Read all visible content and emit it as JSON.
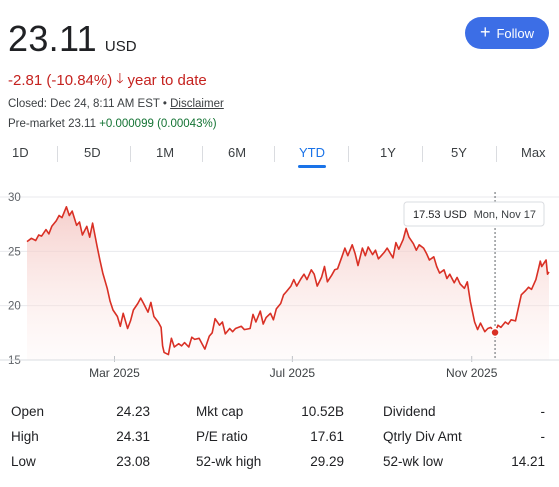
{
  "quote": {
    "price": "23.11",
    "currency": "USD",
    "change_text": "-2.81 (-10.84%)",
    "change_arrow": "🡓",
    "change_period": "year to date",
    "closed_text": "Closed: Dec 24, 8:11 AM EST • ",
    "disclaimer_link": "Disclaimer",
    "premarket_label": "Pre-market 23.11 ",
    "premarket_change": "+0.000099 (0.00043%)",
    "follow_label": "Follow",
    "follow_icon": "plus-icon"
  },
  "tabs": [
    {
      "label": "1D",
      "active": false
    },
    {
      "label": "5D",
      "active": false
    },
    {
      "label": "1M",
      "active": false
    },
    {
      "label": "6M",
      "active": false
    },
    {
      "label": "YTD",
      "active": true
    },
    {
      "label": "1Y",
      "active": false
    },
    {
      "label": "5Y",
      "active": false
    },
    {
      "label": "Max",
      "active": false
    }
  ],
  "chart_data": {
    "type": "area",
    "series_color": "#d93025",
    "yticks": [
      "30",
      "25",
      "20",
      "15"
    ],
    "ytick_values": [
      30,
      25,
      20,
      15
    ],
    "ylim": [
      15,
      30
    ],
    "xticks": [
      "Mar 2025",
      "Jul 2025",
      "Nov 2025"
    ],
    "xtick_values": [
      "2025-03-01",
      "2025-07-01",
      "2025-11-01"
    ],
    "xlim": [
      "2024-12-31",
      "2025-12-24"
    ],
    "grid": true,
    "tooltip": {
      "price": "17.53 USD",
      "date": "Mon, Nov 17"
    },
    "marker_point": {
      "x": "2025-11-17",
      "y": 17.53
    },
    "series": [
      {
        "values": [
          [
            "2024-12-31",
            25.9
          ],
          [
            "2025-01-03",
            26.2
          ],
          [
            "2025-01-06",
            26.0
          ],
          [
            "2025-01-08",
            26.5
          ],
          [
            "2025-01-10",
            26.4
          ],
          [
            "2025-01-13",
            27.0
          ],
          [
            "2025-01-15",
            26.6
          ],
          [
            "2025-01-17",
            27.3
          ],
          [
            "2025-01-20",
            27.8
          ],
          [
            "2025-01-22",
            28.3
          ],
          [
            "2025-01-24",
            28.1
          ],
          [
            "2025-01-27",
            29.1
          ],
          [
            "2025-01-29",
            28.3
          ],
          [
            "2025-01-31",
            28.7
          ],
          [
            "2025-02-03",
            27.4
          ],
          [
            "2025-02-05",
            27.7
          ],
          [
            "2025-02-07",
            26.5
          ],
          [
            "2025-02-10",
            27.3
          ],
          [
            "2025-02-12",
            26.3
          ],
          [
            "2025-02-14",
            27.6
          ],
          [
            "2025-02-17",
            25.5
          ],
          [
            "2025-02-19",
            24.2
          ],
          [
            "2025-02-21",
            23.0
          ],
          [
            "2025-02-24",
            21.6
          ],
          [
            "2025-02-26",
            20.4
          ],
          [
            "2025-02-28",
            19.6
          ],
          [
            "2025-03-03",
            19.0
          ],
          [
            "2025-03-05",
            18.1
          ],
          [
            "2025-03-07",
            19.3
          ],
          [
            "2025-03-10",
            17.9
          ],
          [
            "2025-03-12",
            18.6
          ],
          [
            "2025-03-14",
            19.6
          ],
          [
            "2025-03-17",
            20.2
          ],
          [
            "2025-03-19",
            20.7
          ],
          [
            "2025-03-21",
            20.2
          ],
          [
            "2025-03-24",
            19.4
          ],
          [
            "2025-03-26",
            20.3
          ],
          [
            "2025-03-28",
            19.0
          ],
          [
            "2025-03-31",
            18.5
          ],
          [
            "2025-04-02",
            18.0
          ],
          [
            "2025-04-03",
            16.3
          ],
          [
            "2025-04-04",
            15.7
          ],
          [
            "2025-04-07",
            15.5
          ],
          [
            "2025-04-09",
            17.0
          ],
          [
            "2025-04-11",
            16.2
          ],
          [
            "2025-04-14",
            16.5
          ],
          [
            "2025-04-16",
            16.3
          ],
          [
            "2025-04-18",
            16.6
          ],
          [
            "2025-04-21",
            16.2
          ],
          [
            "2025-04-23",
            17.1
          ],
          [
            "2025-04-25",
            16.9
          ],
          [
            "2025-04-28",
            17.0
          ],
          [
            "2025-04-30",
            16.5
          ],
          [
            "2025-05-02",
            16.0
          ],
          [
            "2025-05-05",
            17.2
          ],
          [
            "2025-05-07",
            17.5
          ],
          [
            "2025-05-09",
            18.8
          ],
          [
            "2025-05-12",
            18.2
          ],
          [
            "2025-05-14",
            18.5
          ],
          [
            "2025-05-16",
            17.4
          ],
          [
            "2025-05-19",
            17.9
          ],
          [
            "2025-05-21",
            17.6
          ],
          [
            "2025-05-23",
            17.9
          ],
          [
            "2025-05-27",
            18.1
          ],
          [
            "2025-05-29",
            17.8
          ],
          [
            "2025-06-02",
            17.9
          ],
          [
            "2025-06-04",
            19.2
          ],
          [
            "2025-06-06",
            18.5
          ],
          [
            "2025-06-09",
            19.5
          ],
          [
            "2025-06-11",
            18.3
          ],
          [
            "2025-06-13",
            18.9
          ],
          [
            "2025-06-16",
            19.3
          ],
          [
            "2025-06-18",
            18.7
          ],
          [
            "2025-06-20",
            19.7
          ],
          [
            "2025-06-23",
            20.2
          ],
          [
            "2025-06-25",
            21.0
          ],
          [
            "2025-06-27",
            21.3
          ],
          [
            "2025-06-30",
            21.8
          ],
          [
            "2025-07-02",
            22.4
          ],
          [
            "2025-07-04",
            21.8
          ],
          [
            "2025-07-07",
            22.5
          ],
          [
            "2025-07-09",
            22.9
          ],
          [
            "2025-07-11",
            22.4
          ],
          [
            "2025-07-14",
            23.3
          ],
          [
            "2025-07-16",
            22.9
          ],
          [
            "2025-07-18",
            21.8
          ],
          [
            "2025-07-21",
            22.6
          ],
          [
            "2025-07-23",
            23.6
          ],
          [
            "2025-07-25",
            22.2
          ],
          [
            "2025-07-28",
            22.8
          ],
          [
            "2025-07-30",
            23.3
          ],
          [
            "2025-08-01",
            23.4
          ],
          [
            "2025-08-04",
            24.5
          ],
          [
            "2025-08-06",
            25.3
          ],
          [
            "2025-08-08",
            24.6
          ],
          [
            "2025-08-11",
            25.6
          ],
          [
            "2025-08-13",
            24.8
          ],
          [
            "2025-08-15",
            23.7
          ],
          [
            "2025-08-18",
            25.3
          ],
          [
            "2025-08-20",
            24.6
          ],
          [
            "2025-08-22",
            25.4
          ],
          [
            "2025-08-25",
            24.7
          ],
          [
            "2025-08-27",
            25.1
          ],
          [
            "2025-08-29",
            24.3
          ],
          [
            "2025-09-02",
            24.9
          ],
          [
            "2025-09-04",
            25.3
          ],
          [
            "2025-09-08",
            24.4
          ],
          [
            "2025-09-10",
            25.8
          ],
          [
            "2025-09-12",
            25.2
          ],
          [
            "2025-09-15",
            26.1
          ],
          [
            "2025-09-17",
            27.1
          ],
          [
            "2025-09-19",
            26.3
          ],
          [
            "2025-09-22",
            25.7
          ],
          [
            "2025-09-24",
            25.1
          ],
          [
            "2025-09-26",
            25.6
          ],
          [
            "2025-09-29",
            25.3
          ],
          [
            "2025-10-01",
            24.8
          ],
          [
            "2025-10-03",
            24.2
          ],
          [
            "2025-10-06",
            24.5
          ],
          [
            "2025-10-08",
            23.6
          ],
          [
            "2025-10-10",
            23.0
          ],
          [
            "2025-10-13",
            23.3
          ],
          [
            "2025-10-15",
            22.5
          ],
          [
            "2025-10-17",
            22.9
          ],
          [
            "2025-10-20",
            22.1
          ],
          [
            "2025-10-22",
            22.6
          ],
          [
            "2025-10-24",
            22.0
          ],
          [
            "2025-10-27",
            21.6
          ],
          [
            "2025-10-29",
            22.2
          ],
          [
            "2025-10-31",
            20.4
          ],
          [
            "2025-11-03",
            18.5
          ],
          [
            "2025-11-05",
            17.8
          ],
          [
            "2025-11-07",
            18.4
          ],
          [
            "2025-11-10",
            17.6
          ],
          [
            "2025-11-12",
            17.9
          ],
          [
            "2025-11-14",
            18.0
          ],
          [
            "2025-11-17",
            17.53
          ],
          [
            "2025-11-19",
            18.2
          ],
          [
            "2025-11-21",
            18.0
          ],
          [
            "2025-11-24",
            18.5
          ],
          [
            "2025-11-26",
            18.3
          ],
          [
            "2025-11-28",
            18.7
          ],
          [
            "2025-12-01",
            18.6
          ],
          [
            "2025-12-03",
            19.8
          ],
          [
            "2025-12-05",
            21.0
          ],
          [
            "2025-12-08",
            21.4
          ],
          [
            "2025-12-10",
            21.7
          ],
          [
            "2025-12-12",
            21.5
          ],
          [
            "2025-12-15",
            22.4
          ],
          [
            "2025-12-17",
            23.5
          ],
          [
            "2025-12-18",
            24.1
          ],
          [
            "2025-12-19",
            23.6
          ],
          [
            "2025-12-22",
            24.2
          ],
          [
            "2025-12-23",
            22.9
          ],
          [
            "2025-12-24",
            23.11
          ]
        ]
      }
    ]
  },
  "stats": [
    {
      "label": "Open",
      "value": "24.23"
    },
    {
      "label": "Mkt cap",
      "value": "10.52B"
    },
    {
      "label": "Dividend",
      "value": "-"
    },
    {
      "label": "High",
      "value": "24.31"
    },
    {
      "label": "P/E ratio",
      "value": "17.61"
    },
    {
      "label": "Qtrly Div Amt",
      "value": "-"
    },
    {
      "label": "Low",
      "value": "23.08"
    },
    {
      "label": "52-wk high",
      "value": "29.29"
    },
    {
      "label": "52-wk low",
      "value": "14.21"
    }
  ]
}
